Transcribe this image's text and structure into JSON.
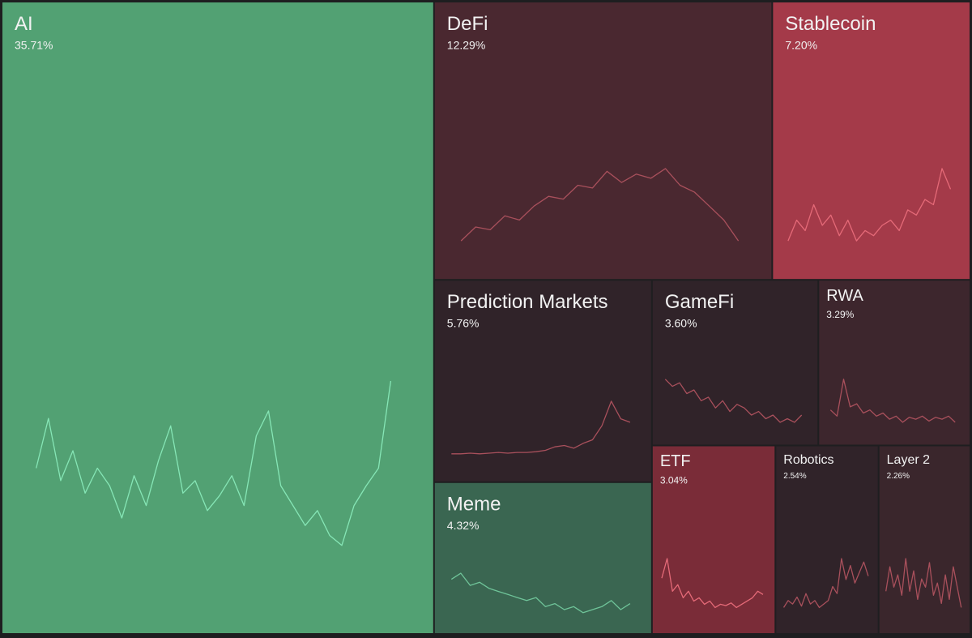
{
  "chart_data": {
    "type": "treemap",
    "categories": [
      "AI",
      "DeFi",
      "Stablecoin",
      "Prediction Markets",
      "GameFi",
      "RWA",
      "Meme",
      "ETF",
      "Robotics",
      "Layer 2"
    ],
    "values": [
      35.71,
      12.29,
      7.2,
      5.76,
      3.6,
      3.29,
      4.32,
      3.04,
      2.54,
      2.26
    ],
    "value_labels": [
      "35.71%",
      "12.29%",
      "7.20%",
      "5.76%",
      "3.60%",
      "3.29%",
      "4.32%",
      "3.04%",
      "2.54%",
      "2.26%"
    ],
    "colors": [
      "#52a173",
      "#4a2830",
      "#a43a49",
      "#302329",
      "#302329",
      "#3d262d",
      "#3a6651",
      "#7a2c38",
      "#302329",
      "#3a262c"
    ],
    "line_colors": [
      "#86e6b6",
      "#a9505c",
      "#e56a78",
      "#a9505c",
      "#a9505c",
      "#a9505c",
      "#6fc499",
      "#e56a78",
      "#a9505c",
      "#a9505c"
    ],
    "sparklines": [
      [
        55,
        75,
        50,
        62,
        45,
        55,
        48,
        35,
        52,
        40,
        58,
        72,
        45,
        50,
        38,
        44,
        52,
        40,
        68,
        78,
        48,
        40,
        32,
        38,
        28,
        24,
        40,
        48,
        55,
        90
      ],
      [
        20,
        30,
        28,
        38,
        35,
        45,
        52,
        50,
        60,
        58,
        70,
        62,
        68,
        65,
        72,
        60,
        55,
        45,
        35,
        20
      ],
      [
        20,
        40,
        30,
        55,
        35,
        45,
        25,
        40,
        20,
        30,
        25,
        35,
        40,
        30,
        50,
        45,
        60,
        55,
        90,
        70
      ],
      [
        10,
        10,
        11,
        10,
        11,
        12,
        11,
        12,
        12,
        13,
        15,
        20,
        22,
        18,
        25,
        30,
        50,
        85,
        60,
        55
      ],
      [
        80,
        70,
        75,
        60,
        65,
        50,
        55,
        40,
        50,
        35,
        45,
        40,
        30,
        35,
        25,
        30,
        20,
        25,
        20,
        30
      ],
      [
        40,
        30,
        90,
        45,
        50,
        35,
        40,
        30,
        35,
        25,
        30,
        20,
        28,
        25,
        30,
        22,
        28,
        25,
        30,
        20
      ],
      [
        70,
        80,
        60,
        65,
        55,
        50,
        45,
        40,
        35,
        40,
        25,
        30,
        20,
        25,
        15,
        20,
        25,
        35,
        20,
        30
      ],
      [
        60,
        90,
        40,
        50,
        30,
        40,
        25,
        30,
        20,
        25,
        15,
        20,
        18,
        22,
        15,
        20,
        25,
        30,
        40,
        35
      ],
      [
        10,
        20,
        15,
        25,
        12,
        30,
        15,
        20,
        10,
        15,
        20,
        40,
        30,
        80,
        50,
        70,
        45,
        60,
        75,
        55
      ],
      [
        40,
        70,
        45,
        60,
        35,
        80,
        40,
        65,
        30,
        55,
        45,
        75,
        35,
        50,
        25,
        60,
        30,
        70,
        45,
        20
      ]
    ]
  }
}
